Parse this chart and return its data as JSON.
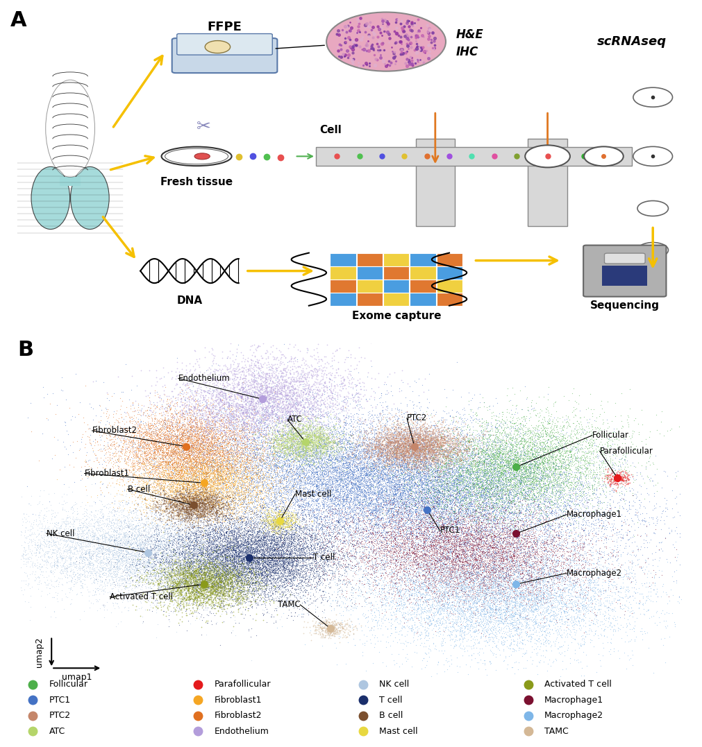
{
  "colors": {
    "Follicular": "#4daf4a",
    "PTC1": "#4472c4",
    "PTC2": "#c5866a",
    "ATC": "#b5d56a",
    "Parafollicular": "#e41a1c",
    "Fibroblast1": "#f5a623",
    "Fibroblast2": "#e07020",
    "Endothelium": "#b39ddb",
    "NK cell": "#aec6e0",
    "T cell": "#1a2e6b",
    "B cell": "#7b4f2e",
    "Mast cell": "#e8d840",
    "Activated T cell": "#8a9a1a",
    "Macrophage1": "#7b1030",
    "Macrophage2": "#7eb6e8",
    "TAMC": "#d4b896"
  },
  "legend_order": [
    [
      "Follicular",
      "PTC1",
      "PTC2",
      "ATC"
    ],
    [
      "Parafollicular",
      "Fibroblast1",
      "Fibroblast2",
      "Endothelium"
    ],
    [
      "NK cell",
      "T cell",
      "B cell",
      "Mast cell"
    ],
    [
      "Activated T cell",
      "Macrophage1",
      "Macrophage2",
      "TAMC"
    ]
  ],
  "background_color": "#ffffff"
}
